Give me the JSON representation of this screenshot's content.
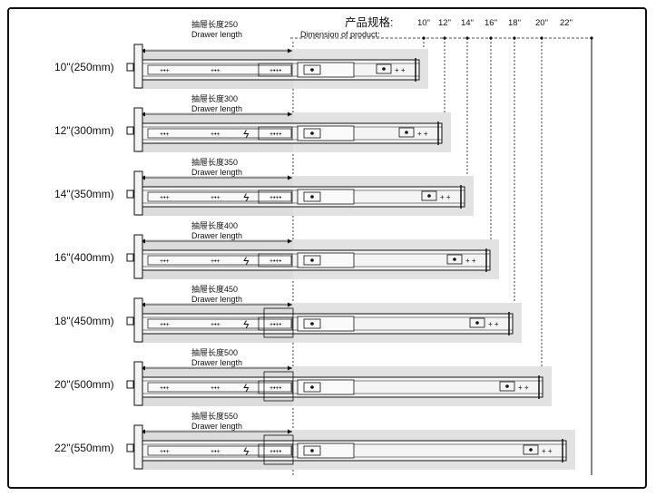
{
  "header": {
    "drawer_length_cn": "抽屉长度250",
    "drawer_length_en": "Drawer length",
    "dimension_cn": "产品规格:",
    "dimension_en": "Dimension of product:"
  },
  "sizes": [
    "10\"",
    "12\"",
    "14\"",
    "16\"",
    "18\"",
    "20\"",
    "22\""
  ],
  "rows": [
    {
      "label": "10\"(250mm)",
      "cn": "抽屉长度250",
      "en": "Drawer length"
    },
    {
      "label": "12\"(300mm)",
      "cn": "抽屉长度300",
      "en": "Drawer length"
    },
    {
      "label": "14\"(350mm)",
      "cn": "抽屉长度350",
      "en": "Drawer length"
    },
    {
      "label": "16\"(400mm)",
      "cn": "抽屉长度400",
      "en": "Drawer length"
    },
    {
      "label": "18\"(450mm)",
      "cn": "抽屉长度450",
      "en": "Drawer length"
    },
    {
      "label": "20\"(500mm)",
      "cn": "抽屉长度500",
      "en": "Drawer length"
    },
    {
      "label": "22\"(550mm)",
      "cn": "抽屉长度550",
      "en": "Drawer length"
    }
  ],
  "colors": {
    "drawer_fill": "#dcdcdc",
    "line": "#111111"
  }
}
